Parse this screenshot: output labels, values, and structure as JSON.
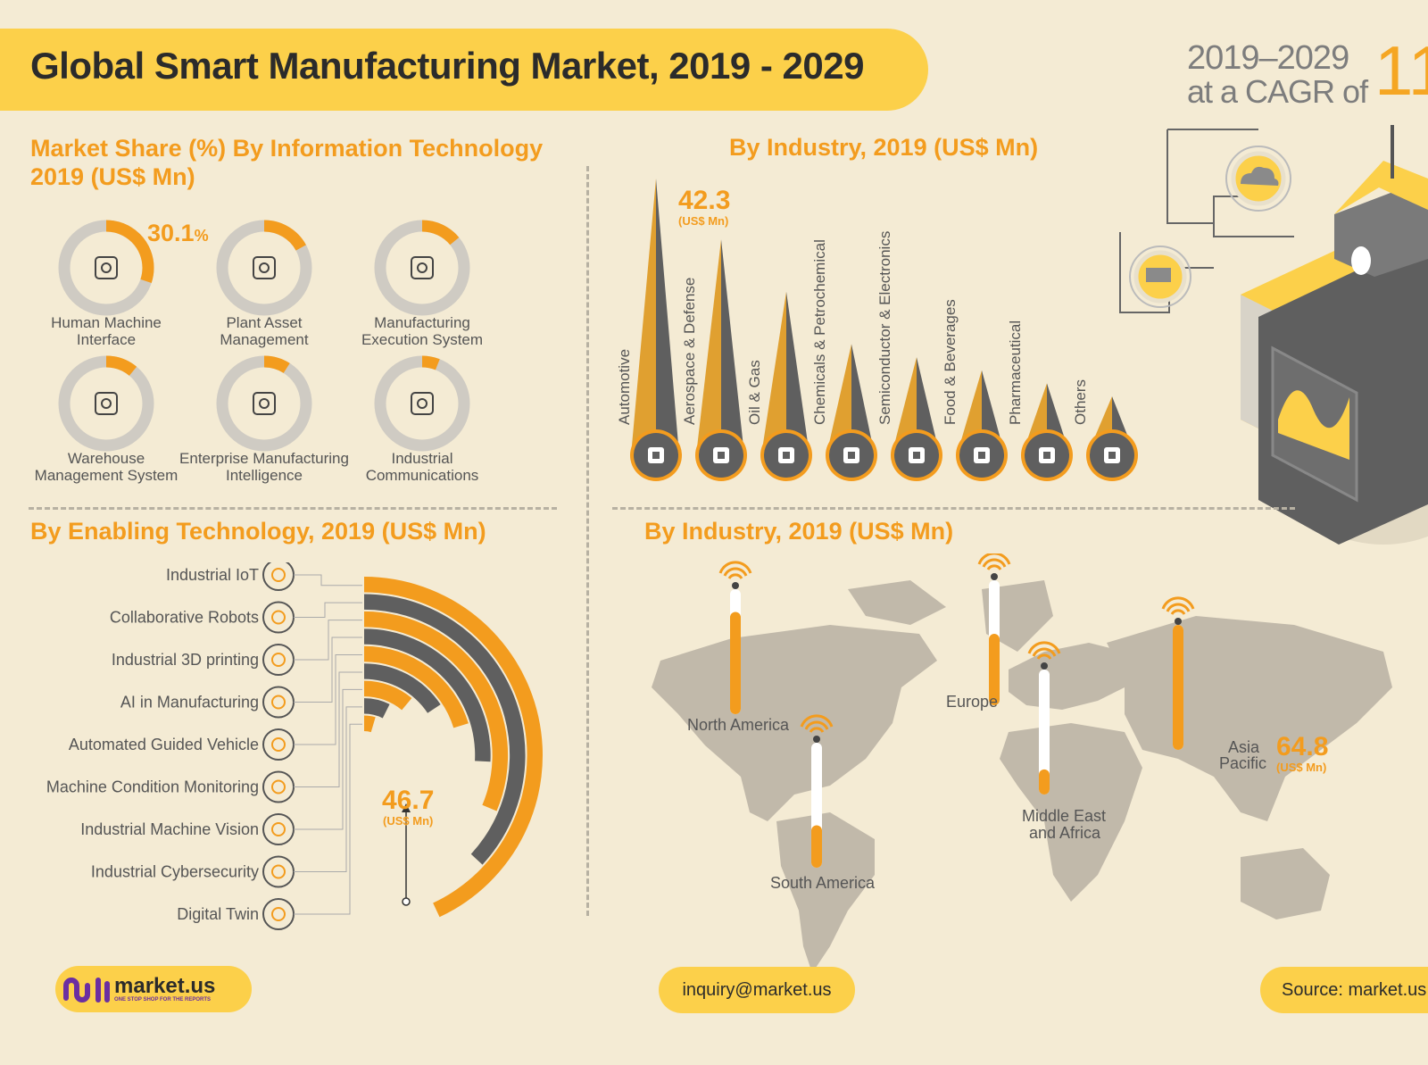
{
  "header": {
    "title": "Global Smart Manufacturing Market, 2019 - 2029",
    "cagr_years": "2019–2029",
    "cagr_of": "at a CAGR of",
    "cagr_value": "11"
  },
  "sections": {
    "it_title": "Market Share (%) By Information Technology 2019 (US$ Mn)",
    "industry_title": "By Industry, 2019 (US$ Mn)",
    "enabling_title": "By Enabling Technology, 2019 (US$ Mn)",
    "region_title": "By Industry, 2019 (US$ Mn)"
  },
  "colors": {
    "accent": "#f39c1e",
    "yellow": "#fcd04a",
    "gray": "#5f5f5f",
    "track": "#cfcbc3",
    "background": "#f4ebd4"
  },
  "chart_data": [
    {
      "type": "pie",
      "subtype": "donut-grid",
      "categories": [
        "Human Machine Interface",
        "Plant Asset Management",
        "Manufacturing Execution System",
        "Warehouse Management System",
        "Enterprise Manufacturing Intelligence",
        "Industrial Communications"
      ],
      "values": [
        30.1,
        17,
        14,
        11,
        9,
        6
      ],
      "highlight_label": "30.1",
      "highlight_unit": "%",
      "icons": [
        "hmi-icon",
        "asset-icon",
        "mes-icon",
        "boxes-icon",
        "robot-arm-icon",
        "globe-head-icon"
      ]
    },
    {
      "type": "bar",
      "subtype": "spike",
      "categories": [
        "Automotive",
        "Aerospace & Defense",
        "Oil & Gas",
        "Chemicals & Petrochemical",
        "Semiconductor & Electronics",
        "Food & Beverages",
        "Pharmaceutical",
        "Others"
      ],
      "values": [
        42.3,
        33,
        25,
        17,
        15,
        13,
        11,
        9
      ],
      "highlight_label": "42.3",
      "unit_label": "(US$ Mn)",
      "icons": [
        "gear-icon",
        "airplane-icon",
        "oil-barrel-icon",
        "factory-icon",
        "chip-icon",
        "bottle-icon",
        "pills-icon",
        "machine-icon"
      ]
    },
    {
      "type": "bar",
      "subtype": "radial",
      "categories": [
        "Industrial IoT",
        "Collaborative Robots",
        "Industrial 3D printing",
        "AI in Manufacturing",
        "Automated Guided Vehicle",
        "Machine Condition Monitoring",
        "Industrial Machine Vision",
        "Industrial Cybersecurity",
        "Digital Twin"
      ],
      "values": [
        46.7,
        40,
        34,
        28,
        22,
        17,
        12,
        8,
        5
      ],
      "highlight_label": "46.7",
      "unit_label": "(US$ Mn)"
    },
    {
      "type": "bar",
      "subtype": "map-thermometer",
      "categories": [
        "North America",
        "Europe",
        "South America",
        "Middle East and Africa",
        "Asia Pacific"
      ],
      "values": [
        53,
        37,
        22,
        13,
        64.8
      ],
      "highlight_label": "64.8",
      "unit_label": "(US$ Mn)"
    }
  ],
  "labels": {
    "region_names": [
      "North America",
      "Europe",
      "South America",
      "Middle East",
      "and Africa",
      "Asia",
      "Pacific"
    ]
  },
  "footer": {
    "logo_text": "market.us",
    "logo_tagline": "ONE STOP SHOP FOR THE REPORTS",
    "email": "inquiry@market.us",
    "source": "Source: market.us"
  }
}
